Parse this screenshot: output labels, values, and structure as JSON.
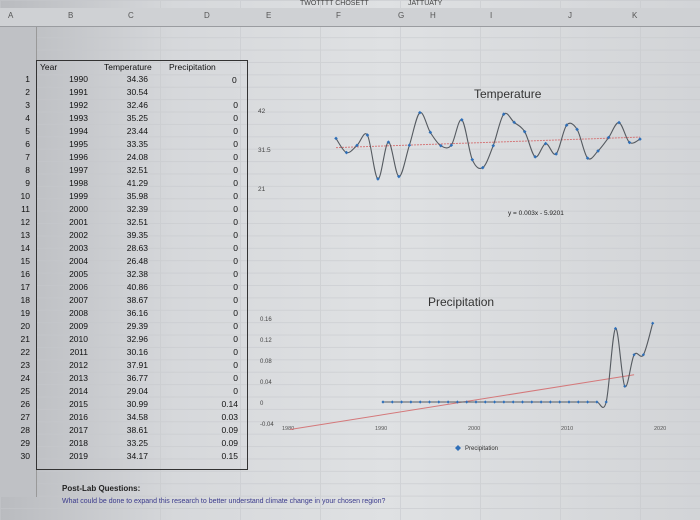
{
  "column_headers": [
    "A",
    "B",
    "C",
    "D",
    "E",
    "F",
    "G",
    "H",
    "I",
    "J",
    "K"
  ],
  "top_labels": [
    "TWOTTTT CHOSETT",
    "JATTUATY"
  ],
  "table": {
    "headers": {
      "year": "Year",
      "temperature": "Temperature",
      "precipitation": "Precipitation"
    },
    "header_row_precip_value": "0",
    "rows": [
      {
        "n": "1",
        "year": "1990",
        "temp": "34.36",
        "precip": ""
      },
      {
        "n": "2",
        "year": "1991",
        "temp": "30.54",
        "precip": ""
      },
      {
        "n": "3",
        "year": "1992",
        "temp": "32.46",
        "precip": "0"
      },
      {
        "n": "4",
        "year": "1993",
        "temp": "35.25",
        "precip": "0"
      },
      {
        "n": "5",
        "year": "1994",
        "temp": "23.44",
        "precip": "0"
      },
      {
        "n": "6",
        "year": "1995",
        "temp": "33.35",
        "precip": "0"
      },
      {
        "n": "7",
        "year": "1996",
        "temp": "24.08",
        "precip": "0"
      },
      {
        "n": "8",
        "year": "1997",
        "temp": "32.51",
        "precip": "0"
      },
      {
        "n": "9",
        "year": "1998",
        "temp": "41.29",
        "precip": "0"
      },
      {
        "n": "10",
        "year": "1999",
        "temp": "35.98",
        "precip": "0"
      },
      {
        "n": "11",
        "year": "2000",
        "temp": "32.39",
        "precip": "0"
      },
      {
        "n": "12",
        "year": "2001",
        "temp": "32.51",
        "precip": "0"
      },
      {
        "n": "13",
        "year": "2002",
        "temp": "39.35",
        "precip": "0"
      },
      {
        "n": "14",
        "year": "2003",
        "temp": "28.63",
        "precip": "0"
      },
      {
        "n": "15",
        "year": "2004",
        "temp": "26.48",
        "precip": "0"
      },
      {
        "n": "16",
        "year": "2005",
        "temp": "32.38",
        "precip": "0"
      },
      {
        "n": "17",
        "year": "2006",
        "temp": "40.86",
        "precip": "0"
      },
      {
        "n": "18",
        "year": "2007",
        "temp": "38.67",
        "precip": "0"
      },
      {
        "n": "19",
        "year": "2008",
        "temp": "36.16",
        "precip": "0"
      },
      {
        "n": "20",
        "year": "2009",
        "temp": "29.39",
        "precip": "0"
      },
      {
        "n": "21",
        "year": "2010",
        "temp": "32.96",
        "precip": "0"
      },
      {
        "n": "22",
        "year": "2011",
        "temp": "30.16",
        "precip": "0"
      },
      {
        "n": "23",
        "year": "2012",
        "temp": "37.91",
        "precip": "0"
      },
      {
        "n": "24",
        "year": "2013",
        "temp": "36.77",
        "precip": "0"
      },
      {
        "n": "25",
        "year": "2014",
        "temp": "29.04",
        "precip": "0"
      },
      {
        "n": "26",
        "year": "2015",
        "temp": "30.99",
        "precip": "0.14"
      },
      {
        "n": "27",
        "year": "2016",
        "temp": "34.58",
        "precip": "0.03"
      },
      {
        "n": "28",
        "year": "2017",
        "temp": "38.61",
        "precip": "0.09"
      },
      {
        "n": "29",
        "year": "2018",
        "temp": "33.25",
        "precip": "0.09"
      },
      {
        "n": "30",
        "year": "2019",
        "temp": "34.17",
        "precip": "0.15"
      }
    ]
  },
  "chart_data": [
    {
      "type": "line",
      "title": "Temperature",
      "x": [
        1990,
        1991,
        1992,
        1993,
        1994,
        1995,
        1996,
        1997,
        1998,
        1999,
        2000,
        2001,
        2002,
        2003,
        2004,
        2005,
        2006,
        2007,
        2008,
        2009,
        2010,
        2011,
        2012,
        2013,
        2014,
        2015,
        2016,
        2017,
        2018,
        2019
      ],
      "series": [
        {
          "values": [
            34.36,
            30.54,
            32.46,
            35.25,
            23.44,
            33.35,
            24.08,
            32.51,
            41.29,
            35.98,
            32.39,
            32.51,
            39.35,
            28.63,
            26.48,
            32.38,
            40.86,
            38.67,
            36.16,
            29.39,
            32.96,
            30.16,
            37.91,
            36.77,
            29.04,
            30.99,
            34.58,
            38.61,
            33.25,
            34.17
          ]
        }
      ],
      "yticks": [
        "42",
        "31.5",
        "21"
      ],
      "ylim": [
        21,
        42
      ],
      "trendline": true,
      "colors": {
        "line": "#555a60",
        "marker": "#2f6fb8",
        "trend": "#d4787a"
      }
    },
    {
      "type": "line",
      "title": "Precipitation",
      "x": [
        1990,
        1991,
        1992,
        1993,
        1994,
        1995,
        1996,
        1997,
        1998,
        1999,
        2000,
        2001,
        2002,
        2003,
        2004,
        2005,
        2006,
        2007,
        2008,
        2009,
        2010,
        2011,
        2012,
        2013,
        2014,
        2015,
        2016,
        2017,
        2018,
        2019
      ],
      "series": [
        {
          "name": "Precipitation",
          "values": [
            0,
            0,
            0,
            0,
            0,
            0,
            0,
            0,
            0,
            0,
            0,
            0,
            0,
            0,
            0,
            0,
            0,
            0,
            0,
            0,
            0,
            0,
            0,
            0,
            0,
            0.14,
            0.03,
            0.09,
            0.09,
            0.15
          ]
        }
      ],
      "yticks": [
        "0.16",
        "0.12",
        "0.08",
        "0.04",
        "0",
        "-0.04"
      ],
      "ylim": [
        -0.04,
        0.16
      ],
      "xticks": [
        "1980",
        "1990",
        "2000",
        "2010",
        "2020"
      ],
      "xlim": [
        1980,
        2020
      ],
      "trendline_label": "y = 0.003x - 5.9201",
      "legend": "Precipitation",
      "colors": {
        "line": "#555a60",
        "marker": "#2f6fb8",
        "trend": "#d4787a"
      }
    }
  ],
  "footer": {
    "heading": "Post-Lab Questions:",
    "question": "What could be done to expand this research to better understand climate change in your chosen region?"
  }
}
